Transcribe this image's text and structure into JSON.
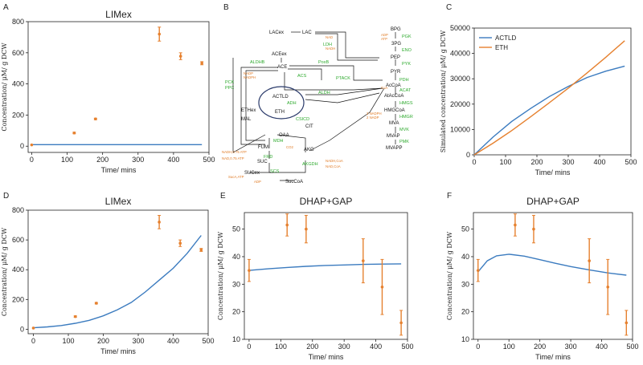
{
  "panel_labels": [
    "A",
    "B",
    "C",
    "D",
    "E",
    "F"
  ],
  "colors": {
    "model": "#3b7bbf",
    "data": "#e6812f",
    "enzyme": "#2eaa2e",
    "cofactor": "#e07a24"
  },
  "chart_data": [
    {
      "id": "A",
      "type": "scatter",
      "title": "LIMex",
      "xlabel": "Time/ mins",
      "ylabel": "Concentration/ μM/ g DCW",
      "xlim": [
        -10,
        500
      ],
      "ylim": [
        -40,
        800
      ],
      "xticks": [
        0,
        100,
        200,
        300,
        400,
        500
      ],
      "yticks": [
        0,
        200,
        400,
        600,
        800
      ],
      "x_tick_labels": [
        "0",
        "100",
        "200",
        "300",
        "400",
        "500"
      ],
      "y_tick_labels": [
        "0",
        "200",
        "400",
        "600",
        "800"
      ],
      "points": [
        {
          "x": 0,
          "y": 8,
          "err": 0
        },
        {
          "x": 120,
          "y": 85,
          "err": 5
        },
        {
          "x": 180,
          "y": 175,
          "err": 5
        },
        {
          "x": 360,
          "y": 720,
          "err": 45
        },
        {
          "x": 420,
          "y": 578,
          "err": 22
        },
        {
          "x": 480,
          "y": 533,
          "err": 10
        }
      ],
      "model": {
        "x": [
          0,
          480
        ],
        "y": [
          10,
          10
        ]
      }
    },
    {
      "id": "C",
      "type": "line",
      "xlabel": "Time/ mins",
      "ylabel": "Simulated concentration/ μM/ g DCW",
      "xlim": [
        0,
        500
      ],
      "ylim": [
        0,
        50000
      ],
      "xticks": [
        0,
        100,
        200,
        300,
        400,
        500
      ],
      "yticks": [
        0,
        10000,
        20000,
        30000,
        40000,
        50000
      ],
      "x_tick_labels": [
        "0",
        "100",
        "200",
        "300",
        "400",
        "500"
      ],
      "y_tick_labels": [
        "0",
        "10000",
        "20000",
        "30000",
        "40000",
        "50000"
      ],
      "legend": [
        "ACTLD",
        "ETH"
      ],
      "legend_position": "top-left",
      "series": [
        {
          "name": "ACTLD",
          "x": [
            0,
            60,
            120,
            180,
            240,
            300,
            360,
            420,
            480
          ],
          "y": [
            0,
            7000,
            13200,
            18300,
            23000,
            27000,
            30500,
            33000,
            35000
          ]
        },
        {
          "name": "ETH",
          "x": [
            0,
            60,
            120,
            180,
            240,
            300,
            360,
            420,
            480
          ],
          "y": [
            0,
            4600,
            9600,
            15000,
            20600,
            26300,
            32300,
            38500,
            45000
          ]
        }
      ]
    },
    {
      "id": "D",
      "type": "scatter",
      "title": "LIMex",
      "xlabel": "Time/ mins",
      "ylabel": "Concentration/ μM/ g DCW",
      "xlim": [
        -15,
        500
      ],
      "ylim": [
        -30,
        800
      ],
      "xticks": [
        0,
        100,
        200,
        300,
        400,
        500
      ],
      "yticks": [
        0,
        200,
        400,
        600,
        800
      ],
      "x_tick_labels": [
        "0",
        "100",
        "200",
        "300",
        "400",
        "500"
      ],
      "y_tick_labels": [
        "0",
        "200",
        "400",
        "600",
        "800"
      ],
      "points": [
        {
          "x": 0,
          "y": 8,
          "err": 0
        },
        {
          "x": 120,
          "y": 85,
          "err": 5
        },
        {
          "x": 180,
          "y": 175,
          "err": 5
        },
        {
          "x": 360,
          "y": 720,
          "err": 45
        },
        {
          "x": 420,
          "y": 578,
          "err": 22
        },
        {
          "x": 480,
          "y": 533,
          "err": 10
        }
      ],
      "model": {
        "x": [
          0,
          40,
          80,
          120,
          160,
          200,
          240,
          280,
          320,
          360,
          400,
          440,
          480
        ],
        "y": [
          10,
          16,
          25,
          40,
          60,
          90,
          130,
          180,
          250,
          330,
          410,
          510,
          630
        ]
      }
    },
    {
      "id": "E",
      "type": "scatter",
      "title": "DHAP+GAP",
      "xlabel": "Time/ mins",
      "ylabel": "Concentration/ μM/ g DCW",
      "xlim": [
        -15,
        500
      ],
      "ylim": [
        10,
        56
      ],
      "xticks": [
        0,
        100,
        200,
        300,
        400,
        500
      ],
      "yticks": [
        10,
        20,
        30,
        40,
        50
      ],
      "x_tick_labels": [
        "0",
        "100",
        "200",
        "300",
        "400",
        "500"
      ],
      "y_tick_labels": [
        "10",
        "20",
        "30",
        "40",
        "50"
      ],
      "points": [
        {
          "x": 0,
          "y": 35,
          "err": 4
        },
        {
          "x": 120,
          "y": 51.5,
          "err": 4
        },
        {
          "x": 180,
          "y": 50,
          "err": 5
        },
        {
          "x": 360,
          "y": 38.5,
          "err": 8
        },
        {
          "x": 420,
          "y": 29,
          "err": 10
        },
        {
          "x": 480,
          "y": 16,
          "err": 4.5
        }
      ],
      "model": {
        "x": [
          0,
          60,
          120,
          180,
          240,
          300,
          360,
          420,
          480
        ],
        "y": [
          35,
          35.6,
          36.1,
          36.5,
          36.8,
          37.0,
          37.2,
          37.3,
          37.4
        ]
      }
    },
    {
      "id": "F",
      "type": "scatter",
      "title": "DHAP+GAP",
      "xlabel": "Time/ mins",
      "ylabel": "Concentration/ μM/ g DCW",
      "xlim": [
        -15,
        500
      ],
      "ylim": [
        10,
        56
      ],
      "xticks": [
        0,
        100,
        200,
        300,
        400,
        500
      ],
      "yticks": [
        10,
        20,
        30,
        40,
        50
      ],
      "x_tick_labels": [
        "0",
        "100",
        "200",
        "300",
        "400",
        "500"
      ],
      "y_tick_labels": [
        "10",
        "20",
        "30",
        "40",
        "50"
      ],
      "points": [
        {
          "x": 0,
          "y": 35,
          "err": 4
        },
        {
          "x": 120,
          "y": 51.5,
          "err": 4
        },
        {
          "x": 180,
          "y": 50,
          "err": 5
        },
        {
          "x": 360,
          "y": 38.5,
          "err": 8
        },
        {
          "x": 420,
          "y": 29,
          "err": 10
        },
        {
          "x": 480,
          "y": 16,
          "err": 4.5
        }
      ],
      "model": {
        "x": [
          0,
          30,
          60,
          100,
          150,
          200,
          250,
          300,
          360,
          420,
          480
        ],
        "y": [
          34.5,
          38.5,
          40.3,
          40.9,
          40.2,
          38.9,
          37.6,
          36.4,
          35.2,
          34.1,
          33.3
        ]
      }
    }
  ],
  "pathway": {
    "nodes": [
      "LACex",
      "LAC",
      "ACEex",
      "BPG",
      "3PG",
      "PEP",
      "PYR",
      "ACE",
      "AcCoA",
      "ACTLD",
      "ETH",
      "ETHex",
      "AtAcCoA",
      "HMGCoA",
      "MVA",
      "MVAP",
      "MVAPP",
      "OAA",
      "FUM",
      "MAL",
      "SUC",
      "SUCex",
      "SucCoA",
      "AKG",
      "CIT"
    ],
    "enzymes": [
      "PGK",
      "ENO",
      "PYK",
      "LDH",
      "PoxB",
      "ALDHB",
      "ACS",
      "PTACK",
      "PDH",
      "ALDH",
      "ADH",
      "CSICD",
      "ACAT",
      "HMGS",
      "HMGR",
      "MVK",
      "PMK",
      "PCK",
      "PPC",
      "MDH",
      "FRD",
      "SCS",
      "AKGDH"
    ],
    "cofactors": [
      "NAD",
      "NADH",
      "ADP",
      "ATP",
      "CoA",
      "2 NADPH",
      "2 NADP",
      "NADH,0.75 ATP",
      "NAD,0.75 ATP",
      "SucA,ATP",
      "ADP",
      "CO2",
      "NADH,CoA",
      "NAD,CoA",
      "NADP",
      "NADPH"
    ]
  }
}
